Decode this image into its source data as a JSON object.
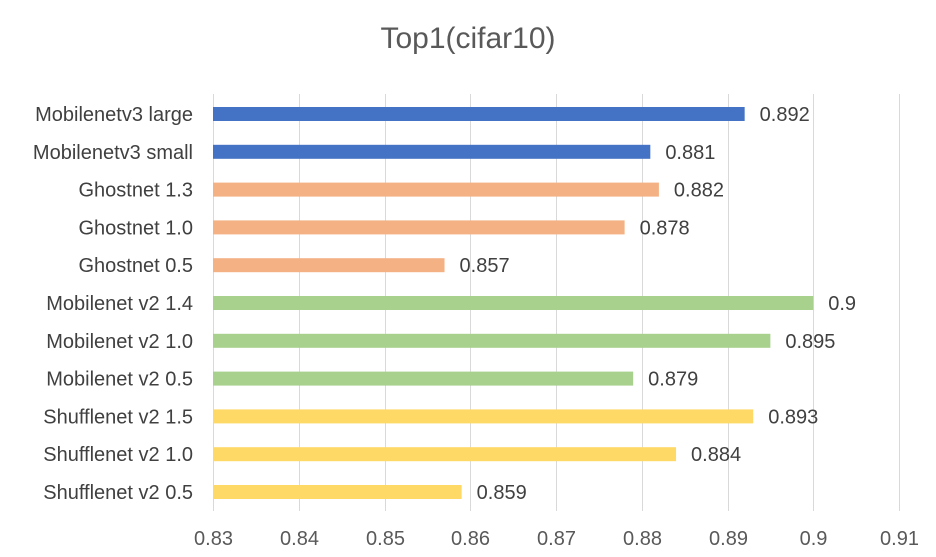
{
  "chart_data": {
    "type": "bar",
    "orientation": "horizontal",
    "title": "Top1(cifar10)",
    "xlabel": "",
    "ylabel": "",
    "xlim": [
      0.83,
      0.91
    ],
    "x_ticks": [
      "0.83",
      "0.84",
      "0.85",
      "0.86",
      "0.87",
      "0.88",
      "0.89",
      "0.9",
      "0.91"
    ],
    "grid": true,
    "legend": "none",
    "categories": [
      "Mobilenetv3 large",
      "Mobilenetv3 small",
      "Ghostnet 1.3",
      "Ghostnet 1.0",
      "Ghostnet 0.5",
      "Mobilenet v2 1.4",
      "Mobilenet v2 1.0",
      "Mobilenet v2 0.5",
      "Shufflenet v2 1.5",
      "Shufflenet v2 1.0",
      "Shufflenet v2 0.5"
    ],
    "values": [
      0.892,
      0.881,
      0.882,
      0.878,
      0.857,
      0.9,
      0.895,
      0.879,
      0.893,
      0.884,
      0.859
    ],
    "data_labels": [
      "0.892",
      "0.881",
      "0.882",
      "0.878",
      "0.857",
      "0.9",
      "0.895",
      "0.879",
      "0.893",
      "0.884",
      "0.859"
    ],
    "colors": [
      "#4472c4",
      "#4472c4",
      "#f4b183",
      "#f4b183",
      "#f4b183",
      "#a9d18e",
      "#a9d18e",
      "#a9d18e",
      "#ffd966",
      "#ffd966",
      "#ffd966"
    ]
  }
}
